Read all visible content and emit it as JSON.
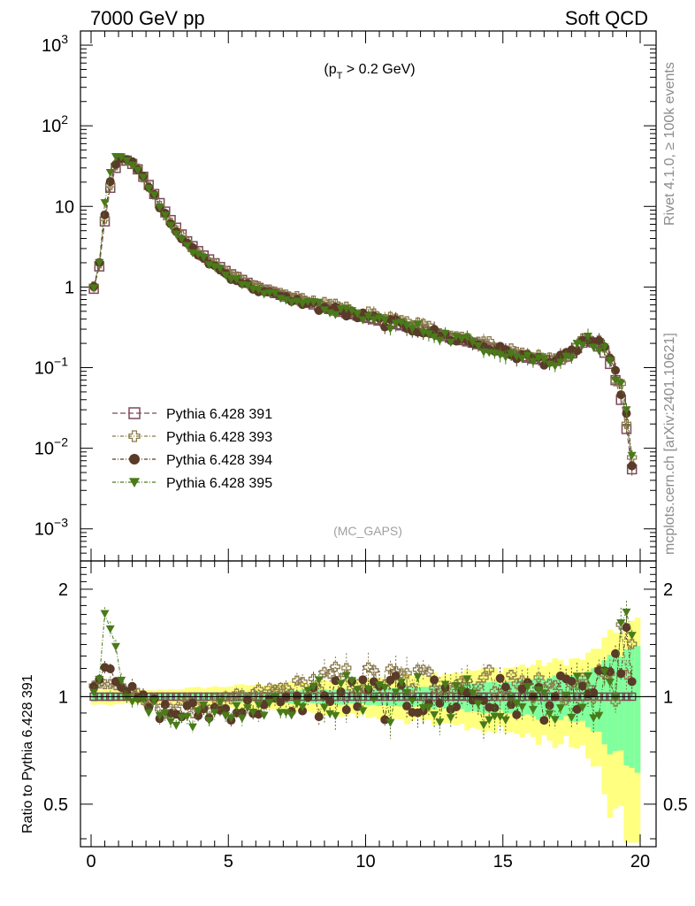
{
  "header": {
    "left": "7000 GeV pp",
    "right": "Soft QCD"
  },
  "side": {
    "rivet": "Rivet 4.1.0, ≥ 100k events",
    "mcplots": "mcplots.cern.ch [arXiv:2401.10621]"
  },
  "chart_data": {
    "type": "scatter",
    "cut_label": "(p_T > 0.2 GeV)",
    "analysis": "(MC_GAPS)",
    "ratio_ylabel": "Ratio to Pythia 6.428 391",
    "xlim": [
      0,
      20
    ],
    "xticks": [
      "0",
      "5",
      "10",
      "15",
      "20"
    ],
    "main_yscale": "log",
    "main_ylim": [
      0.0004,
      1500
    ],
    "main_yticks": [
      {
        "mant": "10",
        "exp": "3",
        "v": 1000
      },
      {
        "mant": "10",
        "exp": "2",
        "v": 100
      },
      {
        "mant": "10",
        "exp": "",
        "v": 10
      },
      {
        "mant": "1",
        "exp": "",
        "v": 1
      },
      {
        "mant": "10",
        "exp": "−1",
        "v": 0.1
      },
      {
        "mant": "10",
        "exp": "−2",
        "v": 0.01
      },
      {
        "mant": "10",
        "exp": "−3",
        "v": 0.001
      }
    ],
    "ratio_yscale": "log",
    "ratio_ylim": [
      0.38,
      2.4
    ],
    "ratio_yticks": [
      {
        "label": "2",
        "v": 2
      },
      {
        "label": "1",
        "v": 1
      },
      {
        "label": "0.5",
        "v": 0.5
      }
    ],
    "shape_knots": {
      "x": [
        0.1,
        0.3,
        0.5,
        0.7,
        0.9,
        1.1,
        1.3,
        1.6,
        2.0,
        2.5,
        3.0,
        3.5,
        4.0,
        5.0,
        6.0,
        7.0,
        8.0,
        9.0,
        10.0,
        11.0,
        12.0,
        13.0,
        14.0,
        15.0,
        16.0,
        17.0,
        17.5,
        18.0,
        18.4,
        18.8,
        19.1,
        19.4,
        19.6,
        19.8
      ],
      "y": [
        0.95,
        1.8,
        6.5,
        17,
        30,
        37,
        37,
        32,
        21,
        11,
        6.0,
        3.7,
        2.6,
        1.5,
        1.0,
        0.78,
        0.62,
        0.5,
        0.42,
        0.35,
        0.3,
        0.24,
        0.2,
        0.16,
        0.13,
        0.12,
        0.15,
        0.22,
        0.2,
        0.14,
        0.07,
        0.03,
        0.01,
        0.003
      ]
    },
    "series": [
      {
        "name": "Pythia 6.428 391",
        "marker": "open-square",
        "color": "#7a4b5a",
        "ratio_knots": {
          "x": [
            0,
            20
          ],
          "y": [
            1,
            1
          ]
        },
        "scatter": 0.0
      },
      {
        "name": "Pythia 6.428 393",
        "marker": "open-cross",
        "color": "#8a7a4a",
        "ratio_knots": {
          "x": [
            0,
            0.5,
            1,
            1.5,
            2,
            3,
            5,
            7,
            9,
            12,
            15,
            17,
            19,
            19.8
          ],
          "y": [
            1.05,
            1.1,
            1.08,
            1.0,
            0.96,
            0.93,
            0.96,
            1.05,
            1.12,
            1.12,
            1.1,
            1.05,
            1.1,
            1.0
          ]
        },
        "scatter": 0.06
      },
      {
        "name": "Pythia 6.428 394",
        "marker": "filled-circle",
        "color": "#5a3a28",
        "ratio_knots": {
          "x": [
            0,
            0.3,
            0.6,
            1,
            1.5,
            2,
            3,
            5,
            7,
            9,
            12,
            15,
            17,
            19,
            19.8
          ],
          "y": [
            0.98,
            1.2,
            1.25,
            1.15,
            1.0,
            0.95,
            0.9,
            0.92,
            0.95,
            1.0,
            1.0,
            1.0,
            1.0,
            1.05,
            1.0
          ]
        },
        "scatter": 0.09
      },
      {
        "name": "Pythia 6.428 395",
        "marker": "filled-triangle-down",
        "color": "#4a7a1a",
        "ratio_knots": {
          "x": [
            0,
            0.3,
            0.5,
            0.7,
            1,
            1.5,
            2,
            3,
            5,
            7,
            9,
            12,
            15,
            17,
            19,
            19.8
          ],
          "y": [
            1.0,
            1.2,
            1.85,
            1.6,
            1.15,
            0.98,
            0.92,
            0.88,
            0.9,
            0.95,
            1.0,
            1.0,
            0.98,
            1.0,
            1.05,
            1.0
          ]
        },
        "scatter": 0.1
      }
    ],
    "bands": {
      "yellow_halfwidth_knots": {
        "x": [
          0,
          2,
          5,
          10,
          15,
          18,
          19.5,
          20
        ],
        "y": [
          0.05,
          0.04,
          0.07,
          0.12,
          0.2,
          0.28,
          0.6,
          0.6
        ]
      },
      "green_halfwidth_knots": {
        "x": [
          0,
          2,
          5,
          10,
          15,
          18,
          19.5,
          20
        ],
        "y": [
          0.03,
          0.02,
          0.03,
          0.05,
          0.1,
          0.15,
          0.35,
          0.35
        ]
      },
      "yellow": "#ffff80",
      "green": "#80ff9f"
    }
  }
}
